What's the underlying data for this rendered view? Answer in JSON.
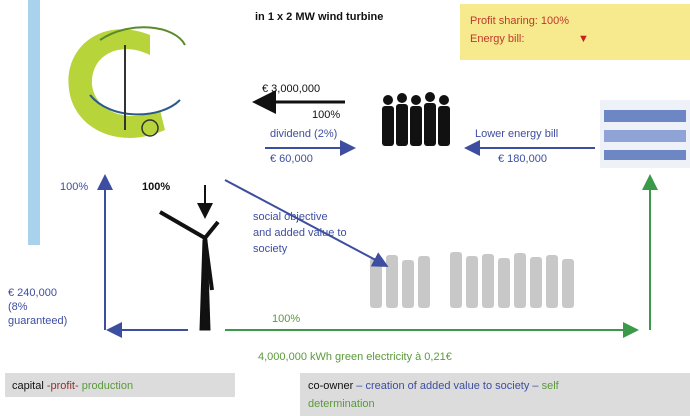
{
  "header": {
    "turbine_note": "in 1 x 2 MW wind turbine",
    "profit_sharing": "Profit sharing: 100%",
    "energy_bill": "Energy bill:",
    "energy_bill_symbol": "▼"
  },
  "flows": {
    "investment": "€ 3,000,000",
    "investment_share": "100%",
    "dividend": "dividend (2%)",
    "dividend_amount": "€ 60,000",
    "lower_bill": "Lower energy bill",
    "lower_bill_amount": "€ 180,000",
    "left_share": "100%",
    "turbine_share": "100%",
    "social_objective": "social objective",
    "social_line2": "and added value to",
    "social_line3": "society",
    "return_amount": "€ 240,000",
    "return_line2": "(8%",
    "return_line3": "guaranteed)",
    "green_share": "100%",
    "electricity": "4,000,000 kWh green electricity à 0,21€"
  },
  "footer": {
    "left": [
      "capital",
      " -profit-",
      " production"
    ],
    "right": [
      "co-owner",
      " – creation of added value to society –",
      " self",
      "determination"
    ]
  }
}
